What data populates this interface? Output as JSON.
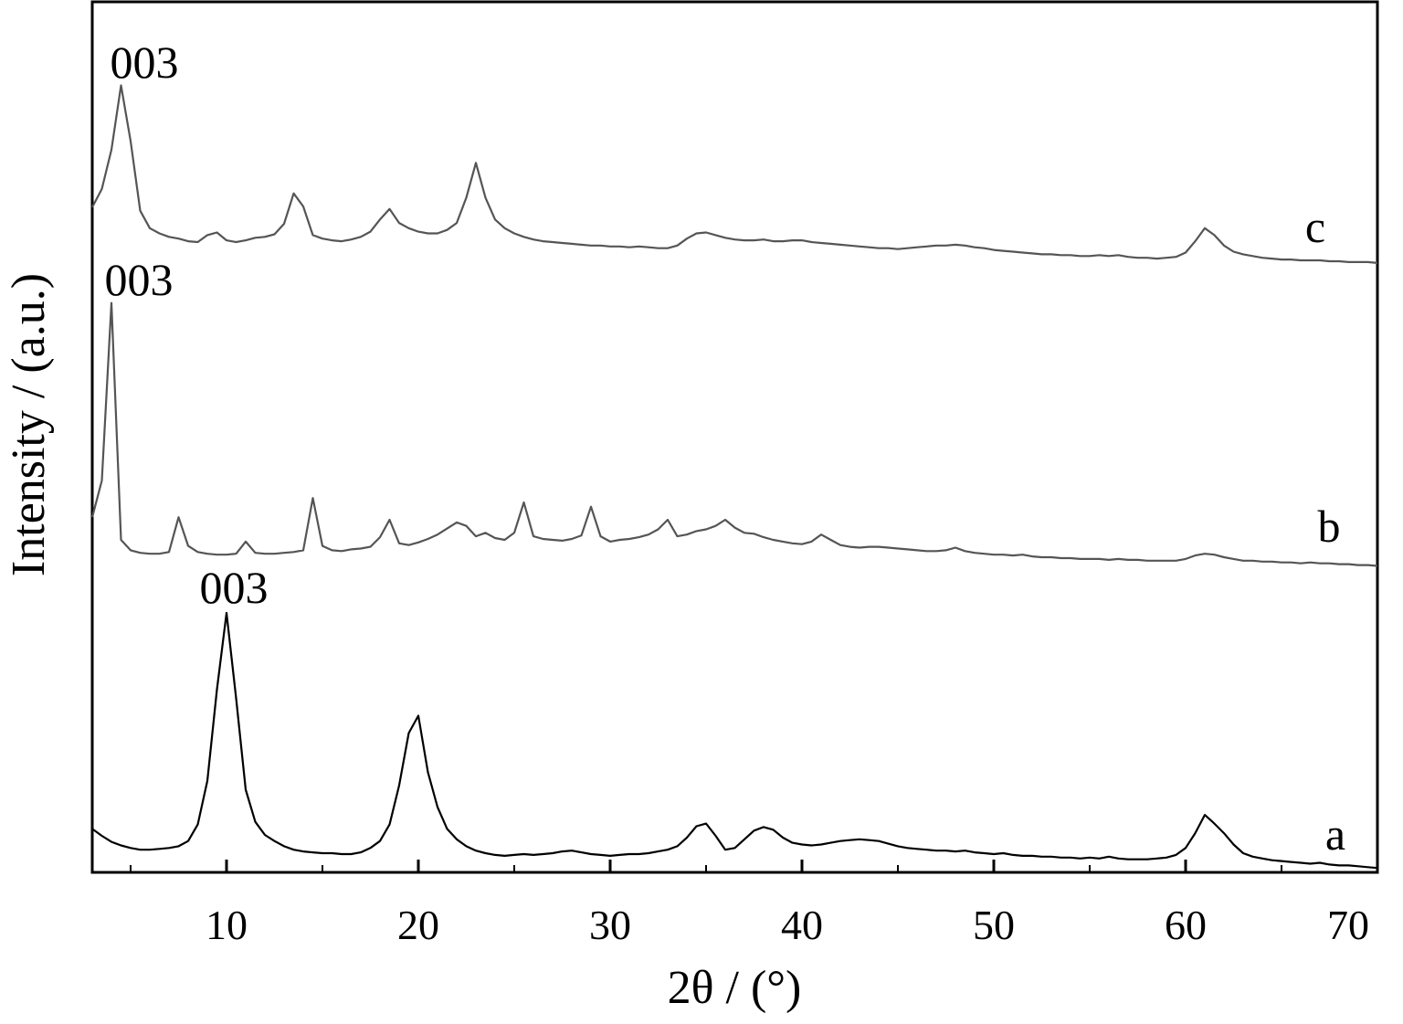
{
  "chart_data": {
    "type": "line",
    "x_label": "2θ / (°)",
    "y_label": "Intensity / (a.u.)",
    "xlim": [
      3,
      70
    ],
    "ylim": [
      0,
      100
    ],
    "xticks": [
      10,
      20,
      30,
      40,
      50,
      60,
      70
    ],
    "xminorticks": [
      5,
      15,
      25,
      35,
      45,
      55,
      65
    ],
    "annotations": [
      "003",
      "003",
      "003"
    ],
    "x": [
      3,
      3.5,
      4,
      4.5,
      5,
      5.5,
      6,
      6.5,
      7,
      7.5,
      8,
      8.5,
      9,
      9.5,
      10,
      10.5,
      11,
      11.5,
      12,
      12.5,
      13,
      13.5,
      14,
      14.5,
      15,
      15.5,
      16,
      16.5,
      17,
      17.5,
      18,
      18.5,
      19,
      19.5,
      20,
      20.5,
      21,
      21.5,
      22,
      22.5,
      23,
      23.5,
      24,
      24.5,
      25,
      25.5,
      26,
      26.5,
      27,
      27.5,
      28,
      28.5,
      29,
      29.5,
      30,
      30.5,
      31,
      31.5,
      32,
      32.5,
      33,
      33.5,
      34,
      34.5,
      35,
      35.5,
      36,
      36.5,
      37,
      37.5,
      38,
      38.5,
      39,
      39.5,
      40,
      40.5,
      41,
      41.5,
      42,
      42.5,
      43,
      43.5,
      44,
      44.5,
      45,
      45.5,
      46,
      46.5,
      47,
      47.5,
      48,
      48.5,
      49,
      49.5,
      50,
      50.5,
      51,
      51.5,
      52,
      52.5,
      53,
      53.5,
      54,
      54.5,
      55,
      55.5,
      56,
      56.5,
      57,
      57.5,
      58,
      58.5,
      59,
      59.5,
      60,
      60.5,
      61,
      61.5,
      62,
      62.5,
      63,
      63.5,
      64,
      64.5,
      65,
      65.5,
      66,
      66.5,
      67,
      67.5,
      68,
      68.5,
      69,
      69.5,
      70
    ],
    "series": [
      {
        "name": "a",
        "color": "#000000",
        "values": [
          5.0,
          4.2,
          3.5,
          3.1,
          2.8,
          2.6,
          2.6,
          2.7,
          2.8,
          3.0,
          3.6,
          5.5,
          10.5,
          21,
          29.8,
          20,
          9.5,
          5.8,
          4.3,
          3.6,
          3.0,
          2.6,
          2.4,
          2.3,
          2.2,
          2.2,
          2.1,
          2.1,
          2.3,
          2.8,
          3.6,
          5.5,
          10,
          16,
          18.0,
          11.5,
          7.5,
          5.0,
          3.8,
          3.0,
          2.5,
          2.2,
          2.0,
          1.9,
          2.0,
          2.1,
          2.0,
          2.1,
          2.2,
          2.4,
          2.5,
          2.3,
          2.1,
          2.0,
          1.9,
          2.0,
          2.1,
          2.1,
          2.2,
          2.4,
          2.6,
          3.0,
          4.0,
          5.3,
          5.6,
          4.2,
          2.6,
          2.8,
          3.8,
          4.8,
          5.2,
          4.9,
          4.0,
          3.4,
          3.2,
          3.1,
          3.2,
          3.4,
          3.6,
          3.7,
          3.8,
          3.7,
          3.6,
          3.3,
          3.0,
          2.8,
          2.7,
          2.6,
          2.5,
          2.5,
          2.4,
          2.5,
          2.3,
          2.2,
          2.1,
          2.2,
          2.0,
          1.9,
          1.9,
          1.8,
          1.8,
          1.7,
          1.7,
          1.6,
          1.7,
          1.6,
          1.8,
          1.6,
          1.5,
          1.5,
          1.5,
          1.6,
          1.7,
          2.0,
          2.8,
          4.5,
          6.6,
          5.6,
          4.5,
          3.2,
          2.2,
          1.8,
          1.6,
          1.4,
          1.3,
          1.2,
          1.1,
          1.0,
          1.1,
          0.9,
          0.8,
          0.8,
          0.7,
          0.6,
          0.5
        ]
      },
      {
        "name": "b",
        "color": "#555555",
        "values": [
          40.8,
          45,
          65.4,
          38.2,
          37.0,
          36.7,
          36.6,
          36.6,
          36.8,
          40.8,
          37.5,
          36.8,
          36.6,
          36.5,
          36.5,
          36.6,
          38.0,
          36.7,
          36.6,
          36.6,
          36.7,
          36.8,
          37.0,
          43.0,
          37.5,
          37.0,
          36.9,
          37.1,
          37.2,
          37.4,
          38.5,
          40.5,
          37.8,
          37.6,
          37.9,
          38.3,
          38.8,
          39.5,
          40.2,
          39.8,
          38.6,
          39.0,
          38.4,
          38.2,
          39.0,
          42.5,
          38.6,
          38.3,
          38.2,
          38.1,
          38.3,
          38.7,
          42.0,
          38.6,
          38.0,
          38.2,
          38.3,
          38.5,
          38.8,
          39.4,
          40.5,
          38.6,
          38.8,
          39.2,
          39.4,
          39.8,
          40.5,
          39.6,
          39.0,
          38.9,
          38.5,
          38.2,
          38.0,
          37.8,
          37.7,
          38.0,
          38.8,
          38.2,
          37.6,
          37.4,
          37.3,
          37.4,
          37.4,
          37.3,
          37.2,
          37.1,
          37.0,
          36.9,
          36.9,
          37.0,
          37.3,
          36.9,
          36.7,
          36.6,
          36.5,
          36.5,
          36.4,
          36.5,
          36.3,
          36.2,
          36.2,
          36.1,
          36.1,
          36.0,
          36.0,
          36.0,
          35.9,
          36.0,
          35.9,
          35.9,
          35.8,
          35.8,
          35.8,
          35.8,
          36.0,
          36.4,
          36.6,
          36.5,
          36.2,
          36.0,
          35.8,
          35.8,
          35.7,
          35.7,
          35.6,
          35.6,
          35.5,
          35.6,
          35.5,
          35.5,
          35.4,
          35.4,
          35.3,
          35.3,
          35.2
        ]
      },
      {
        "name": "c",
        "color": "#555555",
        "values": [
          76.4,
          78.5,
          83,
          90.4,
          84,
          76,
          74.0,
          73.4,
          73.0,
          72.8,
          72.5,
          72.4,
          73.2,
          73.5,
          72.6,
          72.4,
          72.6,
          72.9,
          73.0,
          73.3,
          74.5,
          78.0,
          76.5,
          73.2,
          72.8,
          72.6,
          72.5,
          72.7,
          73.0,
          73.6,
          75.0,
          76.2,
          74.6,
          74.0,
          73.6,
          73.4,
          73.4,
          73.8,
          74.6,
          77.5,
          81.5,
          77.5,
          75.0,
          74.0,
          73.4,
          73.0,
          72.7,
          72.5,
          72.4,
          72.3,
          72.2,
          72.1,
          72.0,
          72.0,
          71.9,
          71.9,
          71.8,
          71.9,
          71.8,
          71.7,
          71.7,
          72.0,
          72.8,
          73.4,
          73.5,
          73.2,
          72.9,
          72.7,
          72.6,
          72.6,
          72.7,
          72.5,
          72.5,
          72.6,
          72.6,
          72.4,
          72.3,
          72.2,
          72.1,
          72.0,
          71.9,
          71.8,
          71.7,
          71.7,
          71.6,
          71.7,
          71.8,
          71.9,
          72.0,
          72.0,
          72.1,
          72.0,
          71.8,
          71.7,
          71.5,
          71.4,
          71.3,
          71.2,
          71.1,
          71.0,
          71.0,
          70.9,
          70.9,
          70.8,
          70.8,
          70.9,
          70.8,
          70.9,
          70.7,
          70.6,
          70.6,
          70.5,
          70.6,
          70.7,
          71.2,
          72.5,
          74.0,
          73.2,
          72.0,
          71.3,
          71.0,
          70.8,
          70.6,
          70.5,
          70.4,
          70.4,
          70.3,
          70.3,
          70.3,
          70.2,
          70.2,
          70.1,
          70.1,
          70.1,
          70.0
        ]
      }
    ]
  }
}
